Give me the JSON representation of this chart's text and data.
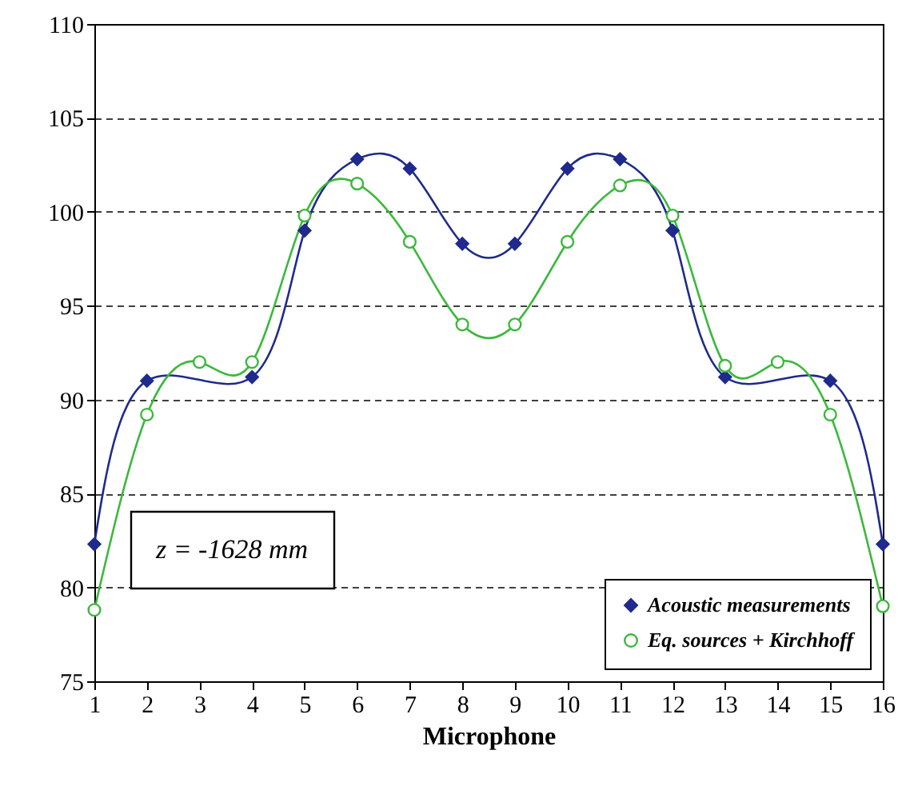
{
  "chart_data": {
    "type": "line",
    "xlabel": "Microphone",
    "xlim": [
      1,
      16
    ],
    "xticks": [
      1,
      2,
      3,
      4,
      5,
      6,
      7,
      8,
      9,
      10,
      11,
      12,
      13,
      14,
      15,
      16
    ],
    "ylim": [
      75,
      110
    ],
    "yticks": [
      75,
      80,
      85,
      90,
      95,
      100,
      105,
      110
    ],
    "grid": "y",
    "legend": "bottom right",
    "line_style": "solid",
    "annotations": [
      "z = -1628 mm"
    ],
    "series": [
      {
        "name": "Acoustic measurements",
        "color": "#1f2a8c",
        "marker": "diamond",
        "x": [
          1,
          2,
          4,
          5,
          6,
          7,
          8,
          9,
          10,
          11,
          12,
          13,
          15,
          16
        ],
        "values": [
          82.3,
          91.0,
          91.2,
          99.0,
          102.8,
          102.3,
          98.3,
          98.3,
          102.3,
          102.8,
          99.0,
          91.2,
          91.0,
          82.3
        ]
      },
      {
        "name": "Eq. sources + Kirchhoff",
        "color": "#3cb83c",
        "marker": "circle",
        "x": [
          1,
          2,
          3,
          4,
          5,
          6,
          7,
          8,
          9,
          10,
          11,
          12,
          13,
          14,
          15,
          16
        ],
        "values": [
          78.8,
          89.2,
          92.0,
          92.0,
          99.8,
          101.5,
          98.4,
          94.0,
          94.0,
          98.4,
          101.4,
          99.8,
          91.8,
          92.0,
          89.2,
          79.0
        ]
      }
    ]
  }
}
